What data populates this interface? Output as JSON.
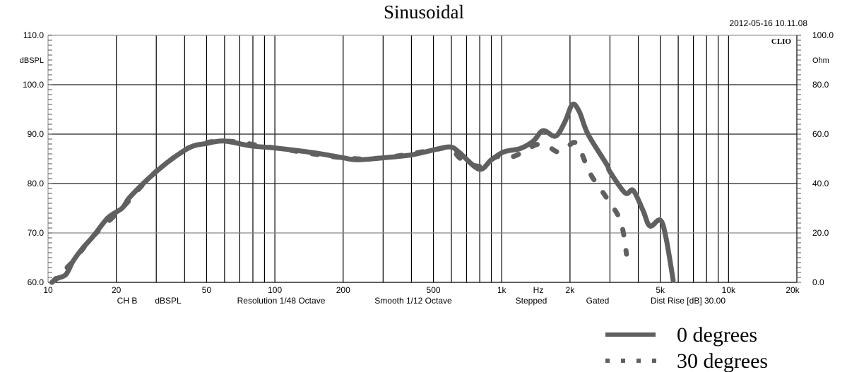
{
  "chart_data": {
    "type": "line",
    "title": "Sinusoidal",
    "timestamp": "2012-05-16 10.11.08",
    "brand": "CLIO",
    "xlabel": "Hz",
    "ylabel": "dBSPL",
    "ylabel_right": "Ohm",
    "xscale": "log",
    "xlim": [
      10,
      20000
    ],
    "ylim": [
      60,
      110
    ],
    "ylim_right": [
      0,
      100
    ],
    "x_ticks": [
      10,
      20,
      50,
      100,
      200,
      500,
      1000,
      2000,
      5000,
      10000,
      20000
    ],
    "x_tick_labels": [
      "10",
      "20",
      "50",
      "100",
      "200",
      "500",
      "1k",
      "2k",
      "5k",
      "10k",
      "20k"
    ],
    "y_tick_labels": [
      "110.0",
      "100.0",
      "90.0",
      "80.0",
      "70.0",
      "60.0"
    ],
    "y_ticks": [
      110,
      100,
      90,
      80,
      70,
      60
    ],
    "y_right_tick_labels": [
      "100.0",
      "80.0",
      "60.0",
      "40.0",
      "20.0",
      "0.0"
    ],
    "footer": [
      "CH B",
      "dBSPL",
      "Resolution 1/48 Octave",
      "Smooth 1/12 Octave",
      "Stepped",
      "Gated",
      "Dist Rise [dB] 30.00"
    ],
    "grid": true,
    "legend_position": "bottom-right",
    "series": [
      {
        "name": "0 degrees",
        "style": "solid",
        "color": "#606060",
        "x": [
          10.4,
          11,
          12,
          12.9,
          14.2,
          15.8,
          18.4,
          21.2,
          22.8,
          27.7,
          34.3,
          42.6,
          50,
          59.6,
          79,
          100,
          150,
          200,
          230,
          300,
          400,
          500,
          593,
          650,
          795,
          900,
          1020,
          1210,
          1380,
          1520,
          1730,
          1900,
          2050,
          2200,
          2400,
          2900,
          3000,
          3500,
          3800,
          4200,
          4500,
          5000,
          5300,
          5700
        ],
        "y": [
          60,
          60.8,
          61.6,
          64.3,
          66.9,
          69.3,
          73.1,
          75,
          77.1,
          81,
          84.6,
          87.4,
          88.1,
          88.6,
          87.6,
          87.2,
          86.2,
          85.2,
          84.8,
          85.2,
          85.8,
          86.8,
          87.4,
          86.3,
          82.9,
          84.8,
          86.4,
          87.1,
          88.6,
          90.7,
          89.6,
          92.5,
          96,
          94.5,
          90,
          83.9,
          82.4,
          78.1,
          78.6,
          74.5,
          71.4,
          72.6,
          69,
          60.4
        ]
      },
      {
        "name": "30 degrees",
        "style": "dotted",
        "color": "#606060",
        "x": [
          10.4,
          12.9,
          15.8,
          21.2,
          27.7,
          34.3,
          42.6,
          59.6,
          100,
          200,
          300,
          500,
          593,
          660,
          800,
          950,
          1110,
          1250,
          1430,
          1600,
          1770,
          1950,
          2150,
          2450,
          2900,
          3340,
          3550
        ],
        "y": [
          60,
          64.3,
          69.3,
          75,
          81,
          84.6,
          87.4,
          88.6,
          87.2,
          85.2,
          85.2,
          86.8,
          87.2,
          85,
          83.5,
          85.4,
          85.4,
          86.5,
          87.9,
          87.5,
          86.4,
          87.5,
          88,
          82.1,
          77.1,
          72.4,
          65.7
        ]
      }
    ]
  }
}
